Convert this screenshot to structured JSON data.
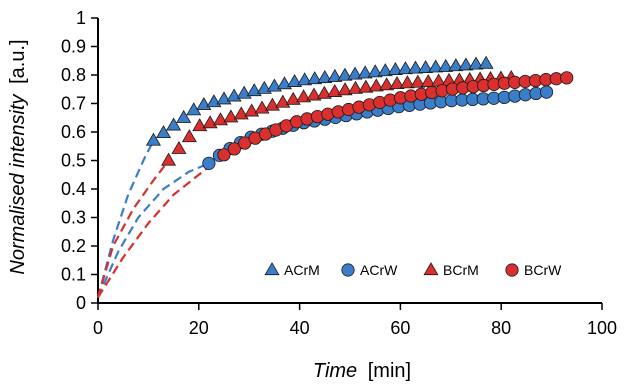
{
  "chart_data": {
    "type": "scatter",
    "xlabel_italic": "Time",
    "xlabel_unit": "[min]",
    "ylabel_italic": "Normalised intensity",
    "ylabel_unit": "[a.u.]",
    "xlim": [
      0,
      100
    ],
    "ylim": [
      0,
      1
    ],
    "x_ticks": [
      "0",
      "20",
      "40",
      "60",
      "80",
      "100"
    ],
    "y_ticks": [
      "0",
      "0.1",
      "0.2",
      "0.3",
      "0.4",
      "0.5",
      "0.6",
      "0.7",
      "0.8",
      "0.9",
      "1"
    ],
    "grid": false,
    "legend_position": "bottom-right",
    "series": [
      {
        "name": "ACrM",
        "marker": "triangle",
        "color": "#3a7dc9",
        "x_start": 11,
        "x_end": 77,
        "n_points": 34,
        "y_start": 0.57,
        "y_end": 0.84,
        "points": [
          [
            11,
            0.57
          ],
          [
            20,
            0.69
          ],
          [
            30,
            0.74
          ],
          [
            40,
            0.78
          ],
          [
            50,
            0.8
          ],
          [
            60,
            0.82
          ],
          [
            70,
            0.83
          ],
          [
            77,
            0.84
          ]
        ],
        "fit": [
          [
            0,
            0.02
          ],
          [
            3,
            0.22
          ],
          [
            6,
            0.38
          ],
          [
            9,
            0.5
          ],
          [
            11,
            0.57
          ]
        ]
      },
      {
        "name": "ACrW",
        "marker": "circle",
        "color": "#3a7dc9",
        "x_start": 22,
        "x_end": 89,
        "n_points": 33,
        "y_start": 0.49,
        "y_end": 0.74,
        "points": [
          [
            22,
            0.49
          ],
          [
            25,
            0.53
          ],
          [
            30,
            0.58
          ],
          [
            40,
            0.63
          ],
          [
            50,
            0.66
          ],
          [
            60,
            0.69
          ],
          [
            70,
            0.71
          ],
          [
            80,
            0.72
          ],
          [
            89,
            0.74
          ]
        ],
        "fit": [
          [
            0,
            0.02
          ],
          [
            4,
            0.18
          ],
          [
            8,
            0.3
          ],
          [
            13,
            0.4
          ],
          [
            18,
            0.46
          ],
          [
            22,
            0.49
          ]
        ]
      },
      {
        "name": "BCrM",
        "marker": "triangle",
        "color": "#d9302f",
        "x_start": 14,
        "x_end": 82,
        "n_points": 34,
        "y_start": 0.5,
        "y_end": 0.79,
        "points": [
          [
            14,
            0.5
          ],
          [
            20,
            0.62
          ],
          [
            30,
            0.67
          ],
          [
            40,
            0.72
          ],
          [
            50,
            0.75
          ],
          [
            60,
            0.77
          ],
          [
            70,
            0.78
          ],
          [
            82,
            0.79
          ]
        ],
        "fit": [
          [
            0,
            0.02
          ],
          [
            3,
            0.2
          ],
          [
            7,
            0.33
          ],
          [
            11,
            0.43
          ],
          [
            14,
            0.5
          ]
        ]
      },
      {
        "name": "BCrW",
        "marker": "circle",
        "color": "#d9302f",
        "x_start": 25,
        "x_end": 93,
        "n_points": 34,
        "y_start": 0.52,
        "y_end": 0.79,
        "points": [
          [
            25,
            0.52
          ],
          [
            30,
            0.57
          ],
          [
            40,
            0.64
          ],
          [
            50,
            0.68
          ],
          [
            60,
            0.72
          ],
          [
            70,
            0.75
          ],
          [
            80,
            0.77
          ],
          [
            93,
            0.79
          ]
        ],
        "fit": [
          [
            0,
            0.02
          ],
          [
            5,
            0.16
          ],
          [
            10,
            0.28
          ],
          [
            15,
            0.38
          ],
          [
            20,
            0.45
          ],
          [
            25,
            0.52
          ]
        ]
      }
    ]
  }
}
